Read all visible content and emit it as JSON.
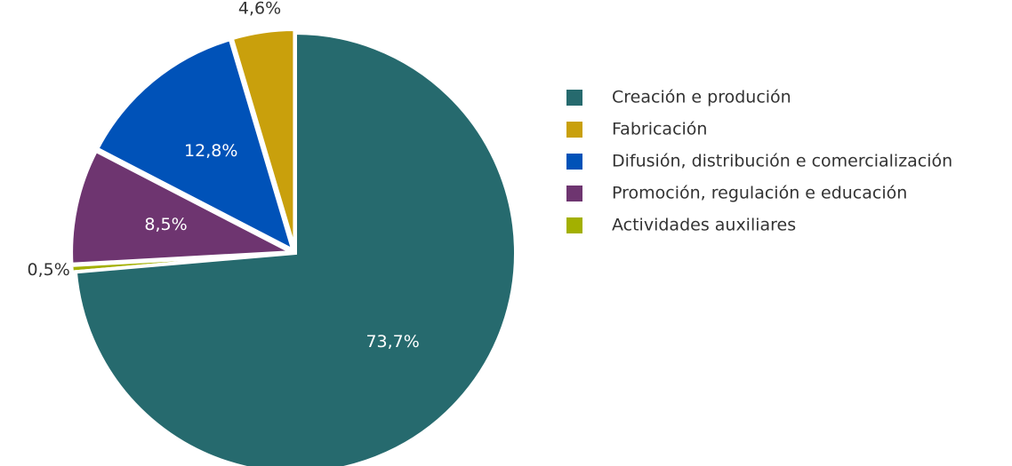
{
  "chart_data": {
    "type": "pie",
    "categories": [
      "Creación e produción",
      "Fabricación",
      "Difusión, distribución e comercialización",
      "Promoción, regulación e educación",
      "Actividades auxiliares"
    ],
    "values": [
      73.7,
      4.6,
      12.8,
      8.5,
      0.5
    ],
    "value_labels": [
      "73,7%",
      "4,6%",
      "12,8%",
      "8,5%",
      "0,5%"
    ],
    "colors": [
      "#266a6e",
      "#c9a00c",
      "#0052b8",
      "#6e3570",
      "#a3b000"
    ],
    "legend": "right"
  }
}
